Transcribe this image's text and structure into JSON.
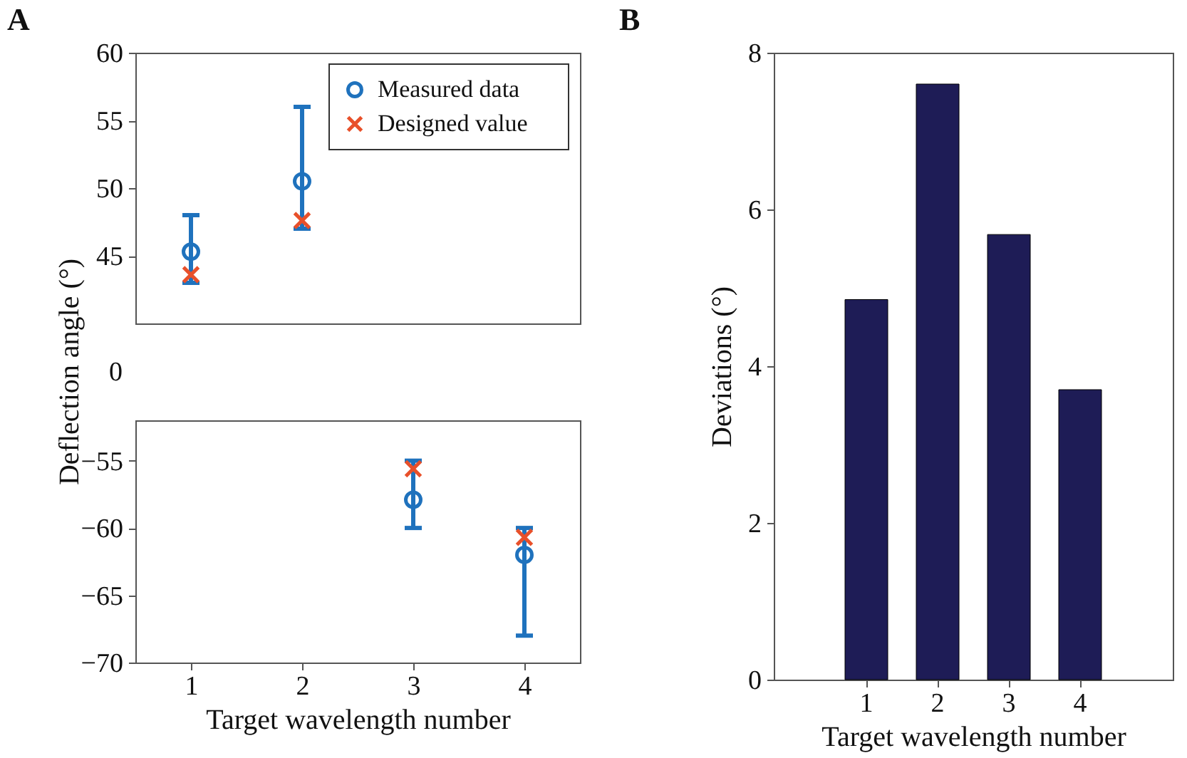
{
  "chart_data": [
    {
      "type": "scatter",
      "title": "A",
      "categories": [
        "1",
        "2",
        "3",
        "4"
      ],
      "ylim": [
        40,
        60
      ],
      "yticks": [
        45,
        50,
        55,
        60
      ],
      "tick_labels": "y",
      "legend": "top right",
      "series": [
        {
          "name": "Measured data",
          "color": "#1f72bd",
          "marker": "circle",
          "values": [
            45.3,
            50.5,
            null,
            null
          ],
          "errors": [
            [
              43,
              48
            ],
            [
              47,
              56
            ],
            null,
            null
          ]
        },
        {
          "name": "Designed value",
          "color": "#e8502a",
          "marker": "cross",
          "values": [
            43.6,
            47.6,
            null,
            null
          ]
        }
      ]
    },
    {
      "type": "other",
      "ylabel": "Deflection angle (°)",
      "annotations": [
        "0"
      ]
    },
    {
      "type": "scatter",
      "xlabel": "Target wavelength number",
      "categories": [
        "1",
        "2",
        "3",
        "4"
      ],
      "ylim": [
        -70,
        -52
      ],
      "yticks": [
        -70,
        -65,
        -60,
        -55
      ],
      "series": [
        {
          "color": "#1f72bd",
          "marker": "circle",
          "values": [
            null,
            null,
            -57.9,
            -62
          ],
          "errors": [
            null,
            null,
            [
              -60,
              -55
            ],
            [
              -68,
              -60
            ]
          ]
        },
        {
          "color": "#e8502a",
          "marker": "cross",
          "values": [
            null,
            null,
            -55.6,
            -60.7
          ]
        }
      ]
    },
    {
      "type": "bar",
      "title": "B",
      "xlabel": "Target wavelength number",
      "ylabel": "Deviations (°)",
      "categories": [
        "1",
        "2",
        "3",
        "4"
      ],
      "values": [
        4.85,
        7.6,
        5.68,
        3.7
      ],
      "color": "#1e1c56",
      "ylim": [
        0,
        8
      ],
      "yticks": [
        0,
        2,
        4,
        6,
        8
      ]
    }
  ]
}
